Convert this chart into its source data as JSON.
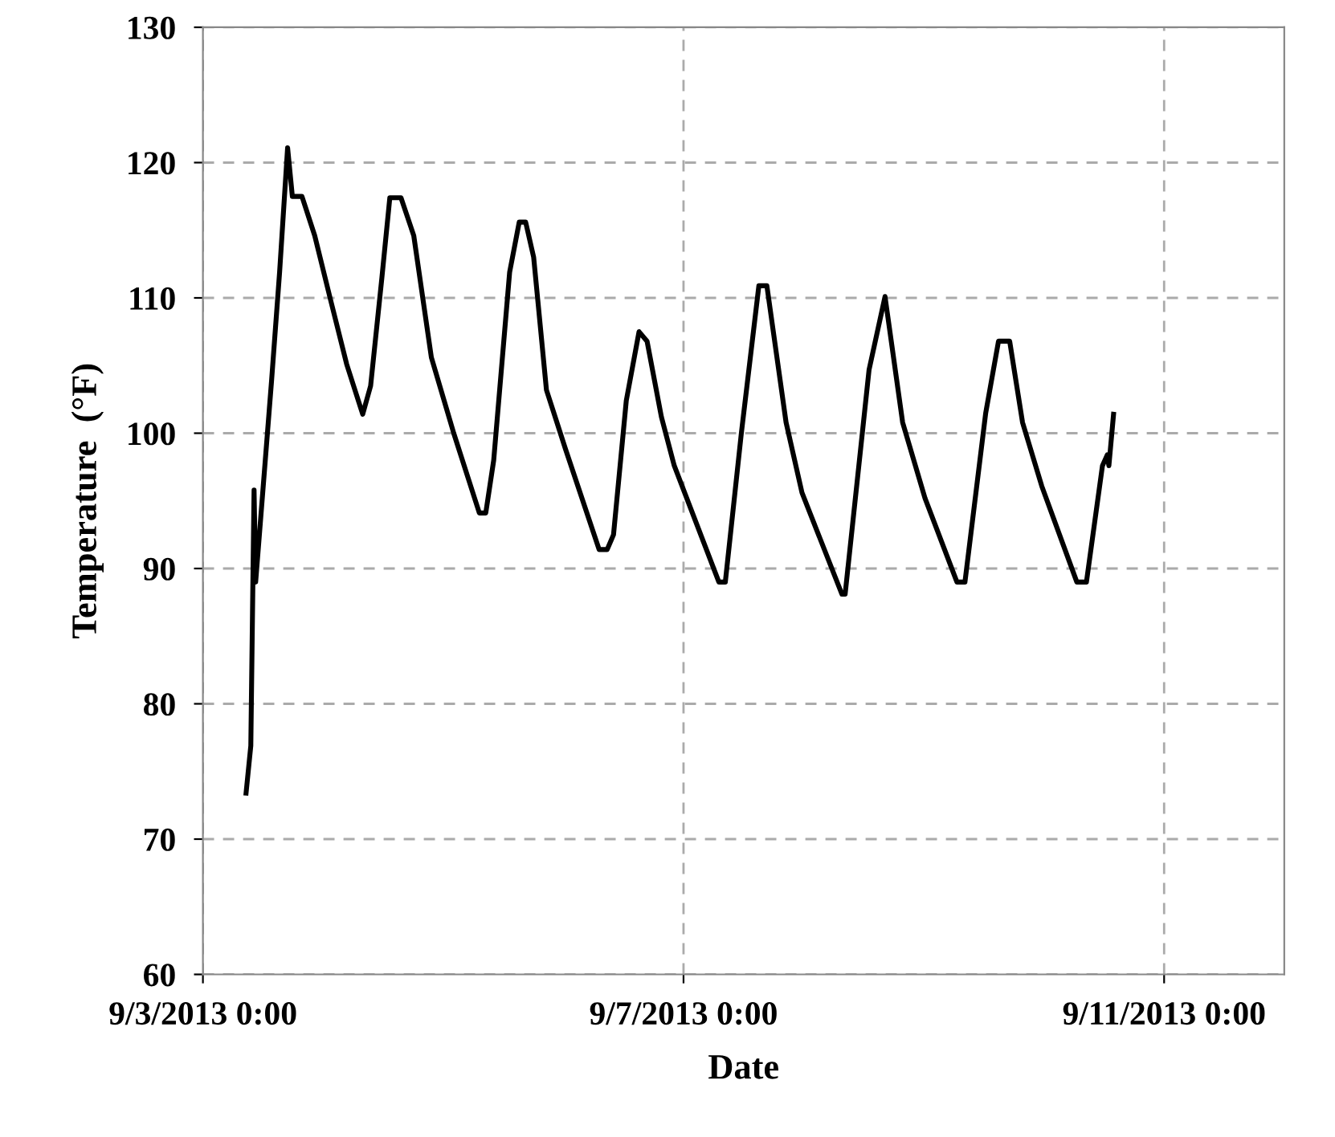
{
  "chart_data": {
    "type": "line",
    "xlabel": "Date",
    "ylabel": "Temperature  (°F)",
    "x": [
      "2013-09-03T08:37",
      "2013-09-03T09:34",
      "2013-09-03T10:13",
      "2013-09-03T10:32",
      "2013-09-03T13:43",
      "2013-09-03T15:19",
      "2013-09-03T16:55",
      "2013-09-03T17:52",
      "2013-09-03T19:47",
      "2013-09-03T22:20",
      "2013-09-04T01:32",
      "2013-09-04T04:43",
      "2013-09-04T07:55",
      "2013-09-04T09:30",
      "2013-09-04T11:45",
      "2013-09-04T13:20",
      "2013-09-04T15:34",
      "2013-09-04T18:07",
      "2013-09-04T21:38",
      "2013-09-05T02:06",
      "2013-09-05T07:13",
      "2013-09-05T08:30",
      "2013-09-05T10:05",
      "2013-09-05T13:16",
      "2013-09-05T15:11",
      "2013-09-05T16:28",
      "2013-09-05T18:04",
      "2013-09-05T20:37",
      "2013-09-06T00:27",
      "2013-09-06T07:09",
      "2013-09-06T08:45",
      "2013-09-06T10:01",
      "2013-09-06T12:34",
      "2013-09-06T15:07",
      "2013-09-06T16:43",
      "2013-09-06T19:35",
      "2013-09-06T22:09",
      "2013-09-07T07:04",
      "2013-09-07T08:21",
      "2013-09-07T11:33",
      "2013-09-07T15:03",
      "2013-09-07T16:39",
      "2013-09-07T20:29",
      "2013-09-07T23:40",
      "2013-09-08T07:39",
      "2013-09-08T08:17",
      "2013-09-08T13:04",
      "2013-09-08T16:15",
      "2013-09-08T19:46",
      "2013-09-09T00:14",
      "2013-09-09T06:37",
      "2013-09-09T08:13",
      "2013-09-09T12:22",
      "2013-09-09T14:55",
      "2013-09-09T17:09",
      "2013-09-09T19:43",
      "2013-09-09T23:33",
      "2013-09-10T06:34",
      "2013-09-10T08:29",
      "2013-09-10T11:41",
      "2013-09-10T12:39",
      "2013-09-10T12:58",
      "2013-09-10T13:54"
    ],
    "series": [
      {
        "color": "#000000",
        "values": [
          73.4,
          76.9,
          95.8,
          89.0,
          103.9,
          111.9,
          121.1,
          117.5,
          117.5,
          114.6,
          109.8,
          105.1,
          101.4,
          103.5,
          111.5,
          117.4,
          117.4,
          114.6,
          105.6,
          100.0,
          94.1,
          94.1,
          98.0,
          111.9,
          115.6,
          115.6,
          113.0,
          103.2,
          98.8,
          91.4,
          91.4,
          92.5,
          102.4,
          107.5,
          106.8,
          101.2,
          97.6,
          89.0,
          89.0,
          100.0,
          110.9,
          110.9,
          100.8,
          95.6,
          88.1,
          88.1,
          104.7,
          110.1,
          100.8,
          95.2,
          89.0,
          89.0,
          101.5,
          106.8,
          106.8,
          100.8,
          96.1,
          89.0,
          89.0,
          97.6,
          98.4,
          97.6,
          101.4
        ]
      }
    ],
    "xlim": [
      "2013-09-03",
      "2013-09-12"
    ],
    "xticks": [
      {
        "value": "2013-09-03",
        "label": "9/3/2013 0:00"
      },
      {
        "value": "2013-09-07",
        "label": "9/7/2013 0:00"
      },
      {
        "value": "2013-09-11",
        "label": "9/11/2013 0:00"
      }
    ],
    "ylim": [
      60,
      130
    ],
    "yticks": [
      60,
      70,
      80,
      90,
      100,
      110,
      120,
      130
    ],
    "grid": true,
    "marker": "none",
    "line_style": "solid",
    "legend": false
  }
}
